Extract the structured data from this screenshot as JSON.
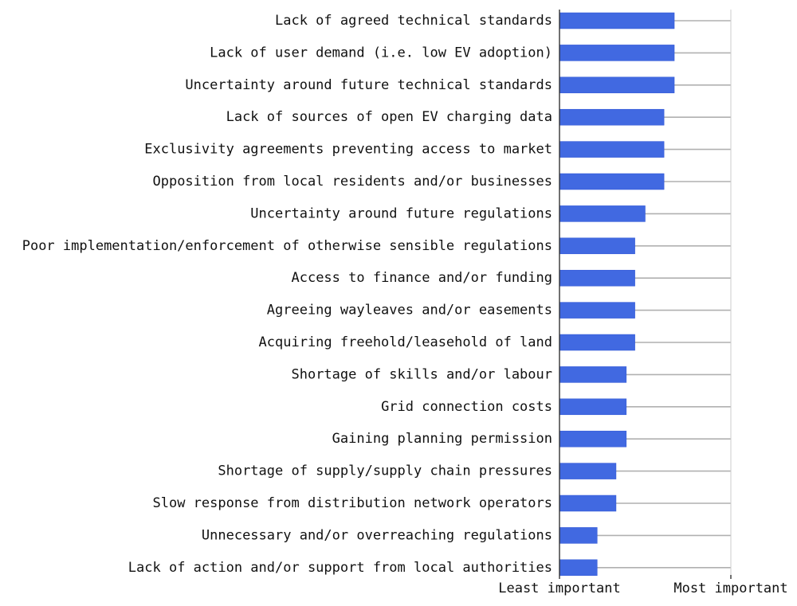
{
  "chart_data": {
    "type": "bar",
    "orientation": "horizontal",
    "categories": [
      "Lack of agreed technical standards",
      "Lack of user demand (i.e. low EV adoption)",
      "Uncertainty around future technical standards",
      "Lack of sources of open EV charging data",
      "Exclusivity agreements preventing access to market",
      "Opposition from local residents and/or businesses",
      "Uncertainty around future regulations",
      "Poor implementation/enforcement of otherwise sensible regulations",
      "Access to finance and/or funding",
      "Agreeing wayleaves and/or easements",
      "Acquiring freehold/leasehold of land",
      "Shortage of skills and/or labour",
      "Grid connection costs",
      "Gaining planning permission",
      "Shortage of supply/supply chain pressures",
      "Slow response from distribution network operators",
      "Unnecessary and/or overreaching regulations",
      "Lack of action and/or support from local authorities"
    ],
    "values": [
      0.67,
      0.67,
      0.67,
      0.61,
      0.61,
      0.61,
      0.5,
      0.44,
      0.44,
      0.44,
      0.44,
      0.39,
      0.39,
      0.39,
      0.33,
      0.33,
      0.22,
      0.22
    ],
    "xlim": [
      0,
      1
    ],
    "x_tick_labels": [
      "Least important",
      "Most important"
    ],
    "xlabel": "",
    "ylabel": "",
    "title": "",
    "grid": "horizontal lines at each category",
    "legend": "none",
    "colors": {
      "bar": "#4169e1",
      "bar_edge": "#2f55d4",
      "gridline": "#b0b0b0",
      "axis": "#888888",
      "text": "#111111"
    }
  }
}
